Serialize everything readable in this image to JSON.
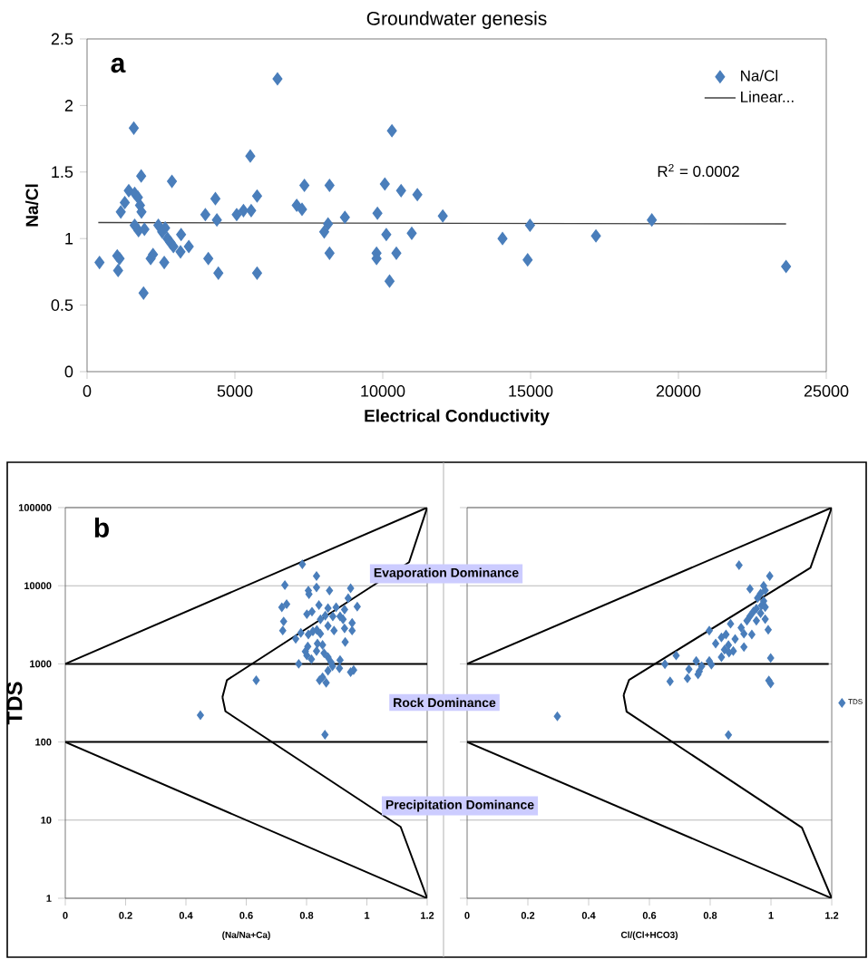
{
  "chart_data": [
    {
      "type": "scatter",
      "title": "Groundwater genesis",
      "xlabel": "Electrical Conductivity",
      "ylabel": "Na/Cl",
      "xlim": [
        0,
        25000
      ],
      "ylim": [
        0,
        2.5
      ],
      "xticks": [
        0,
        5000,
        10000,
        15000,
        20000,
        25000
      ],
      "yticks": [
        0,
        0.5,
        1,
        1.5,
        2,
        2.5
      ],
      "marker": "diamond",
      "legend": "top right",
      "annotations": [
        "a",
        "R$^{2}$ = 0.0002"
      ],
      "series": [
        {
          "name": "Na/Cl",
          "color": "#4a7ebb",
          "x": [
            420,
            1020,
            1100,
            1050,
            1140,
            1275,
            1410,
            1580,
            1610,
            1720,
            1790,
            1840,
            1830,
            1610,
            1740,
            1940,
            1910,
            2150,
            2230,
            2410,
            2540,
            2640,
            2610,
            2720,
            2820,
            2920,
            2870,
            3180,
            3160,
            3440,
            4000,
            4100,
            4340,
            4390,
            4440,
            5060,
            5290,
            5550,
            5520,
            5750,
            5750,
            6440,
            7090,
            7270,
            7350,
            8020,
            8150,
            8200,
            8200,
            8720,
            9820,
            9790,
            9790,
            10070,
            10120,
            10230,
            10310,
            10460,
            10620,
            10980,
            11170,
            12030,
            14050,
            14980,
            14900,
            17210,
            19100,
            23640
          ],
          "values": [
            0.82,
            0.87,
            0.85,
            0.76,
            1.2,
            1.27,
            1.36,
            1.83,
            1.34,
            1.31,
            1.25,
            1.2,
            1.47,
            1.1,
            1.06,
            1.07,
            0.59,
            0.85,
            0.88,
            1.1,
            1.05,
            1.08,
            0.82,
            1.0,
            0.97,
            0.94,
            1.43,
            1.03,
            0.9,
            0.94,
            1.18,
            0.85,
            1.3,
            1.14,
            0.74,
            1.18,
            1.21,
            1.21,
            1.62,
            1.32,
            0.74,
            2.2,
            1.25,
            1.22,
            1.4,
            1.05,
            1.11,
            1.4,
            0.89,
            1.16,
            1.19,
            0.89,
            0.85,
            1.41,
            1.03,
            0.68,
            1.81,
            0.89,
            1.36,
            1.04,
            1.33,
            1.17,
            1.0,
            1.1,
            0.84,
            1.02,
            1.14,
            0.79
          ]
        },
        {
          "type": "line",
          "name": "Linear...",
          "color": "#404040",
          "marker": "none",
          "x": [
            380,
            23640
          ],
          "values": [
            1.12,
            1.11
          ]
        }
      ]
    },
    {
      "type": "scatter",
      "xlabel": "(Na/Na+Ca)",
      "ylabel": "TDS",
      "xlim": [
        0,
        1.2
      ],
      "ylim": [
        1,
        100000
      ],
      "xticks": [
        0,
        0.2,
        0.4,
        0.6,
        0.8,
        1,
        1.2
      ],
      "yticks": [
        1,
        10,
        100,
        1000,
        10000,
        100000
      ],
      "log": "y",
      "grid": "y",
      "marker": "diamond",
      "annotations": [
        "b",
        "Evaporation Dominance",
        "Rock Dominance",
        "Precipitation Dominance"
      ],
      "series": [
        {
          "color": "#4a7ebb",
          "x": [
            0.786,
            0.833,
            0.728,
            0.833,
            0.876,
            0.806,
            0.808,
            0.946,
            0.938,
            0.718,
            0.734,
            0.841,
            0.968,
            0.871,
            0.898,
            0.926,
            0.818,
            0.801,
            0.862,
            0.887,
            0.911,
            0.921,
            0.846,
            0.724,
            0.951,
            0.871,
            0.926,
            0.721,
            0.891,
            0.951,
            0.834,
            0.821,
            0.781,
            0.806,
            0.846,
            0.764,
            0.928,
            0.836,
            0.853,
            0.804,
            0.833,
            0.796,
            0.858,
            0.801,
            0.871,
            0.816,
            0.911,
            0.881,
            0.774,
            0.886,
            0.909,
            0.956,
            0.871,
            0.946,
            0.853,
            0.843,
            0.865,
            0.633,
            0.448,
            0.861
          ],
          "values": [
            18800,
            13300,
            10200,
            9500,
            8650,
            8650,
            7800,
            9300,
            6930,
            5300,
            5800,
            5650,
            5400,
            5170,
            5300,
            4950,
            4650,
            4320,
            4140,
            4060,
            4060,
            3720,
            3720,
            3490,
            3340,
            3060,
            2840,
            2670,
            2670,
            2670,
            2720,
            2610,
            2490,
            2380,
            2430,
            2090,
            1910,
            1820,
            1750,
            1670,
            1460,
            1440,
            1370,
            1280,
            1220,
            1150,
            1120,
            1050,
            1000,
            935,
            880,
            834,
            818,
            783,
            673,
            617,
            574,
            617,
            220,
            124
          ]
        },
        {
          "type": "line",
          "color": "#000000",
          "marker": "none",
          "x": [
            0,
            1.2
          ],
          "values": [
            1000,
            100000
          ]
        },
        {
          "type": "line",
          "color": "#000000",
          "marker": "none",
          "x": [
            0,
            1.2
          ],
          "values": [
            100,
            1
          ]
        },
        {
          "type": "line",
          "color": "#000000",
          "marker": "none",
          "x": [
            0.521,
            0.536,
            1.14,
            1.2
          ],
          "values": [
            375,
            620,
            20000,
            100000
          ]
        },
        {
          "type": "line",
          "color": "#000000",
          "marker": "none",
          "x": [
            0.521,
            0.531,
            1.112,
            1.2
          ],
          "values": [
            375,
            247,
            8.2,
            1
          ]
        },
        {
          "type": "line",
          "color": "#000000",
          "marker": "none",
          "x": [
            0,
            1.2
          ],
          "values": [
            100,
            100
          ]
        },
        {
          "type": "line",
          "color": "#000000",
          "marker": "none",
          "x": [
            0,
            1.2
          ],
          "values": [
            1000,
            1000
          ]
        }
      ]
    },
    {
      "type": "scatter",
      "xlabel": "Cl/(Cl+HCO3)",
      "xlim": [
        0,
        1.2
      ],
      "ylim": [
        1,
        100000
      ],
      "xticks": [
        0,
        0.2,
        0.4,
        0.6,
        0.8,
        1,
        1.2
      ],
      "yticks": [
        1,
        10,
        100,
        1000,
        10000,
        100000
      ],
      "log": "y",
      "grid": "y",
      "marker": "diamond",
      "legend": "right",
      "tick_labels": "x",
      "series": [
        {
          "name": "TDS",
          "color": "#4a7ebb",
          "x": [
            0.895,
            0.996,
            0.931,
            0.976,
            0.981,
            0.966,
            0.956,
            0.976,
            0.969,
            0.981,
            0.952,
            0.942,
            0.966,
            0.931,
            0.981,
            0.952,
            0.921,
            0.867,
            0.991,
            0.797,
            0.902,
            0.937,
            0.911,
            0.852,
            0.837,
            0.882,
            0.818,
            0.911,
            0.86,
            0.847,
            0.876,
            0.862,
            0.837,
            0.688,
            0.999,
            0.754,
            0.797,
            0.804,
            0.651,
            0.772,
            0.73,
            0.764,
            0.76,
            0.725,
            0.668,
            0.993,
            0.999,
            0.297,
            0.86
          ],
          "values": [
            18300,
            13300,
            9120,
            9960,
            8710,
            7960,
            6970,
            6370,
            5570,
            5330,
            5100,
            4660,
            4460,
            4080,
            3730,
            3560,
            3560,
            3260,
            2730,
            2660,
            2900,
            2380,
            2430,
            2380,
            2180,
            2080,
            1820,
            1640,
            1740,
            1520,
            1460,
            1390,
            1220,
            1280,
            1190,
            1090,
            1090,
            976,
            993,
            933,
            853,
            801,
            733,
            652,
            597,
            612,
            560,
            213,
            123
          ]
        },
        {
          "type": "line",
          "color": "#000000",
          "marker": "none",
          "x": [
            0,
            1.2
          ],
          "values": [
            1000,
            100000
          ]
        },
        {
          "type": "line",
          "color": "#000000",
          "marker": "none",
          "x": [
            0,
            1.2
          ],
          "values": [
            100,
            1
          ]
        },
        {
          "type": "line",
          "color": "#000000",
          "marker": "none",
          "x": [
            0.515,
            0.533,
            1.13,
            1.2
          ],
          "values": [
            399,
            624,
            17000,
            100000
          ]
        },
        {
          "type": "line",
          "color": "#000000",
          "marker": "none",
          "x": [
            0.515,
            0.525,
            1.102,
            1.2
          ],
          "values": [
            399,
            244,
            8,
            1
          ]
        },
        {
          "type": "line",
          "color": "#000000",
          "marker": "none",
          "x": [
            0,
            1.19
          ],
          "values": [
            100,
            100
          ]
        },
        {
          "type": "line",
          "color": "#000000",
          "marker": "none",
          "x": [
            0,
            1.19
          ],
          "values": [
            1000,
            1000
          ]
        }
      ]
    }
  ]
}
